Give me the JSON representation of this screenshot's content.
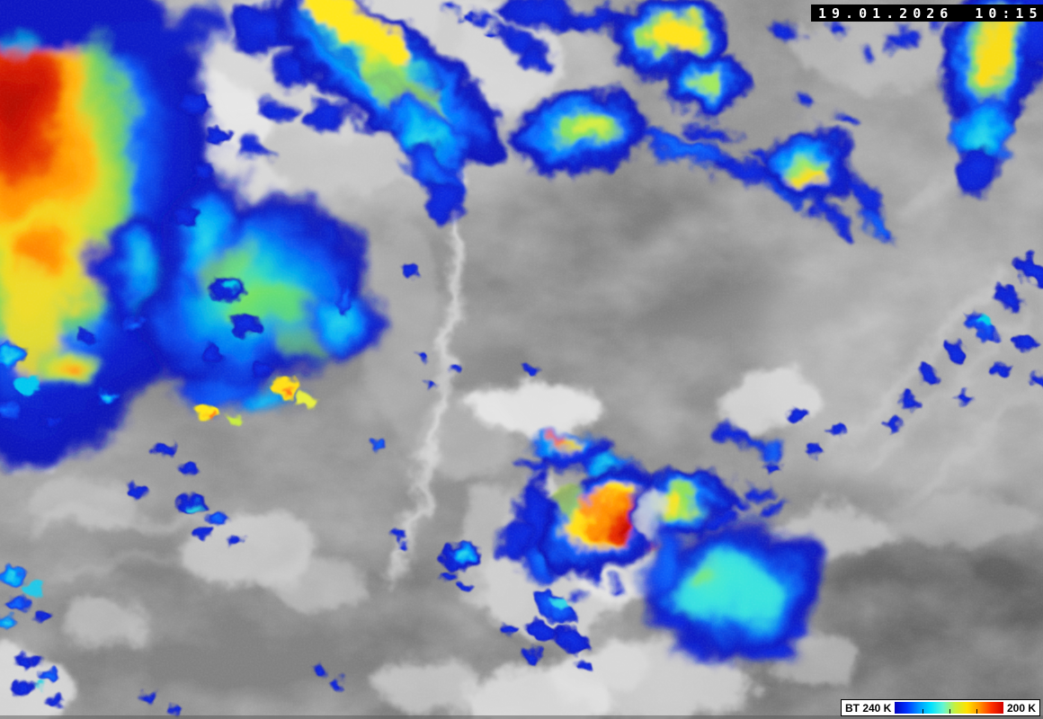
{
  "header": {
    "timestamp": "19.01.2026 10:15"
  },
  "colorbar": {
    "label_left": "BT 240 K",
    "label_right": "200 K",
    "unit": "K",
    "range_start": 240,
    "range_end": 200,
    "gradient_stops": [
      "#0000be",
      "#0032ff",
      "#0096ff",
      "#00e1ff",
      "#64f5d2",
      "#c8f03c",
      "#ffe100",
      "#ff9600",
      "#ff3200",
      "#d20000"
    ],
    "tick_positions_pct": [
      25,
      50,
      75
    ]
  },
  "scene": {
    "palette": {
      "base_gray": "#8f8f8f",
      "terrain_dark_gray": "#6c6c6c",
      "cloud_white": "#e8e8e8",
      "enh_blue": "#0a1ecd",
      "enh_cyan": "#00c0f0",
      "enh_green": "#96e64b",
      "enh_yellow": "#ffe100",
      "enh_orange": "#ff9100",
      "enh_red": "#c81000"
    }
  }
}
